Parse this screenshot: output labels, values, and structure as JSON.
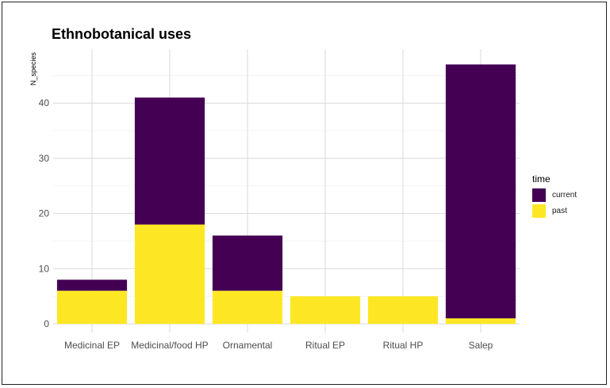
{
  "chart_data": {
    "type": "bar",
    "stacked": true,
    "title": "Ethnobotanical uses",
    "xlabel": "",
    "ylabel": "N_species",
    "ylim": [
      0,
      47
    ],
    "yticks": [
      0,
      10,
      20,
      30,
      40
    ],
    "categories": [
      "Medicinal EP",
      "Medicinal/food HP",
      "Ornamental",
      "Ritual EP",
      "Ritual HP",
      "Salep"
    ],
    "series": [
      {
        "name": "past",
        "color": "#FDE725",
        "values": [
          6,
          18,
          6,
          5,
          5,
          1
        ]
      },
      {
        "name": "current",
        "color": "#440154",
        "values": [
          2,
          23,
          10,
          0,
          0,
          46
        ]
      }
    ],
    "legend": {
      "title": "time",
      "placement": "right",
      "entries": [
        {
          "label": "current",
          "color": "#440154"
        },
        {
          "label": "past",
          "color": "#FDE725"
        }
      ]
    }
  }
}
